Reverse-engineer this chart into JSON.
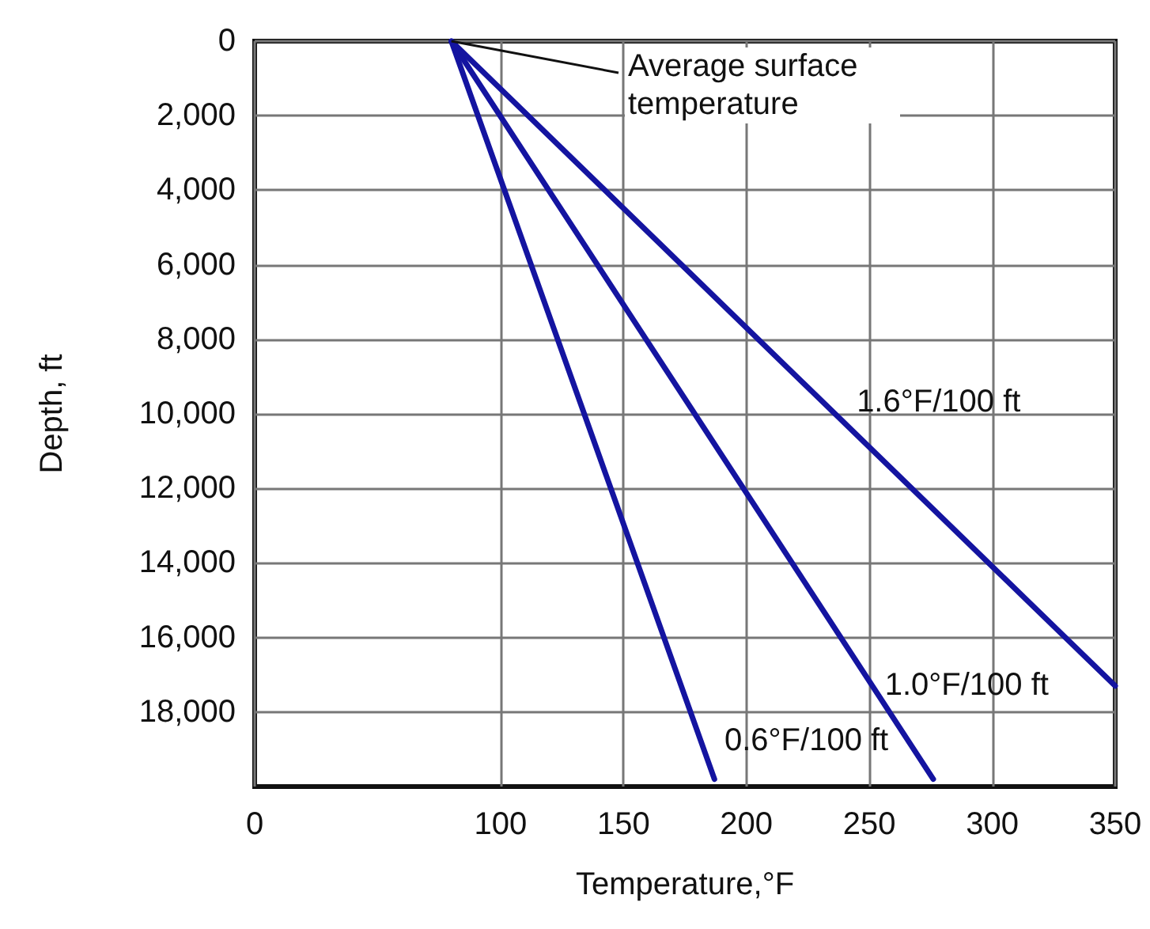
{
  "chart_data": {
    "type": "line",
    "xlabel": "Temperature,°F",
    "ylabel": "Depth, ft",
    "xlim": [
      0,
      350
    ],
    "xticks": [
      0,
      100,
      150,
      200,
      250,
      300,
      350
    ],
    "ylim": [
      20000,
      0
    ],
    "yticks": [
      0,
      {
        "value": 2000,
        "label": "2,000"
      },
      {
        "value": 4000,
        "label": "4,000"
      },
      {
        "value": 6000,
        "label": "6,000"
      },
      {
        "value": 8000,
        "label": "8,000"
      },
      {
        "value": 10000,
        "label": "10,000"
      },
      {
        "value": 12000,
        "label": "12,000"
      },
      {
        "value": 14000,
        "label": "14,000"
      },
      {
        "value": 16000,
        "label": "16,000"
      },
      {
        "value": 18000,
        "label": "18,000"
      }
    ],
    "grid": true,
    "marker": "none",
    "line_style": "solid",
    "series": [
      {
        "name": "0.6°F/100 ft",
        "color": "#1414a0",
        "x": [
          80,
          187
        ],
        "values": [
          0,
          19800
        ]
      },
      {
        "name": "1.0°F/100 ft",
        "color": "#1414a0",
        "x": [
          80,
          276
        ],
        "values": [
          0,
          19800
        ]
      },
      {
        "name": "1.6°F/100 ft",
        "color": "#1414a0",
        "x": [
          80,
          350
        ],
        "values": [
          0,
          17300
        ]
      }
    ],
    "annotations": [
      {
        "text": "Average surface temperature",
        "x": 80,
        "y": 0
      }
    ]
  }
}
